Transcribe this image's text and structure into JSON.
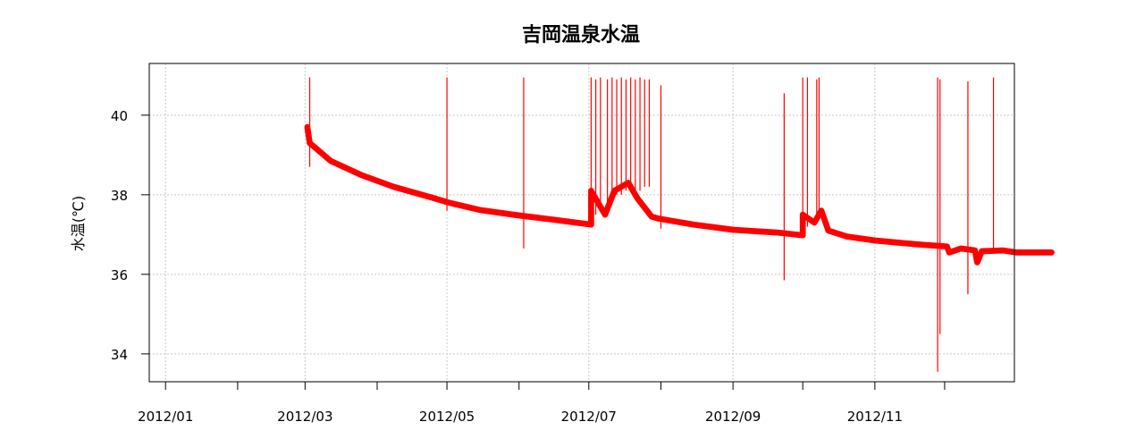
{
  "chart_data": {
    "type": "line",
    "title": "吉岡温泉水温",
    "xlabel": "",
    "ylabel": "水温(℃)",
    "x_axis": {
      "type": "date",
      "range": [
        "2011-12-25",
        "2012-12-31"
      ],
      "major_ticks": [
        "2012-01-01",
        "2012-02-01",
        "2012-03-01",
        "2012-04-01",
        "2012-05-01",
        "2012-06-01",
        "2012-07-01",
        "2012-08-01",
        "2012-09-01",
        "2012-10-01",
        "2012-11-01",
        "2012-12-01"
      ],
      "tick_labels": [
        {
          "date": "2012-01-01",
          "label": "2012/01"
        },
        {
          "date": "2012-03-01",
          "label": "2012/03"
        },
        {
          "date": "2012-05-01",
          "label": "2012/05"
        },
        {
          "date": "2012-07-01",
          "label": "2012/07"
        },
        {
          "date": "2012-09-01",
          "label": "2012/09"
        },
        {
          "date": "2012-11-01",
          "label": "2012/11"
        }
      ]
    },
    "y_axis": {
      "range": [
        33.3,
        41.3
      ],
      "ticks": [
        34,
        36,
        38,
        40
      ],
      "tick_labels": [
        "34",
        "36",
        "38",
        "40"
      ]
    },
    "grid": true,
    "series": [
      {
        "color": "#ff0000",
        "band_width": 0.15,
        "points": [
          [
            "2012-03-02",
            39.7
          ],
          [
            "2012-03-03",
            39.3
          ],
          [
            "2012-03-05",
            39.2
          ],
          [
            "2012-03-12",
            38.85
          ],
          [
            "2012-03-25",
            38.5
          ],
          [
            "2012-04-08",
            38.2
          ],
          [
            "2012-04-25",
            37.92
          ],
          [
            "2012-05-02",
            37.8
          ],
          [
            "2012-05-15",
            37.62
          ],
          [
            "2012-06-01",
            37.48
          ],
          [
            "2012-06-15",
            37.38
          ],
          [
            "2012-07-02",
            37.25
          ],
          [
            "2012-07-02",
            38.1
          ],
          [
            "2012-07-08",
            37.5
          ],
          [
            "2012-07-12",
            38.1
          ],
          [
            "2012-07-18",
            38.3
          ],
          [
            "2012-07-22",
            37.9
          ],
          [
            "2012-07-28",
            37.45
          ],
          [
            "2012-07-31",
            37.4
          ],
          [
            "2012-08-15",
            37.25
          ],
          [
            "2012-09-01",
            37.12
          ],
          [
            "2012-09-20",
            37.05
          ],
          [
            "2012-10-01",
            36.98
          ],
          [
            "2012-10-01",
            37.5
          ],
          [
            "2012-10-06",
            37.3
          ],
          [
            "2012-10-09",
            37.6
          ],
          [
            "2012-10-12",
            37.1
          ],
          [
            "2012-10-20",
            36.95
          ],
          [
            "2012-11-01",
            36.85
          ],
          [
            "2012-11-20",
            36.75
          ],
          [
            "2012-12-02",
            36.7
          ],
          [
            "2012-12-03",
            36.55
          ],
          [
            "2012-12-08",
            36.65
          ],
          [
            "2012-12-14",
            36.6
          ],
          [
            "2012-12-15",
            36.3
          ],
          [
            "2012-12-17",
            36.58
          ],
          [
            "2012-12-26",
            36.6
          ],
          [
            "2012-12-26",
            36.6
          ],
          [
            "2013-01-01",
            36.55
          ],
          [
            "2013-01-05",
            36.55
          ],
          [
            "2013-01-16",
            36.55
          ]
        ],
        "spikes": [
          {
            "date": "2012-03-03",
            "high": 40.95,
            "low": 38.7
          },
          {
            "date": "2012-05-01",
            "high": 40.95,
            "low": 37.6
          },
          {
            "date": "2012-06-03",
            "high": 40.95,
            "low": 36.65
          },
          {
            "date": "2012-07-02",
            "high": 40.95,
            "low": 37.3
          },
          {
            "date": "2012-07-04",
            "high": 40.9,
            "low": 37.5
          },
          {
            "date": "2012-07-06",
            "high": 40.95,
            "low": 37.6
          },
          {
            "date": "2012-07-09",
            "high": 40.9,
            "low": 37.8
          },
          {
            "date": "2012-07-11",
            "high": 40.95,
            "low": 37.9
          },
          {
            "date": "2012-07-13",
            "high": 40.9,
            "low": 38.0
          },
          {
            "date": "2012-07-15",
            "high": 40.95,
            "low": 38.0
          },
          {
            "date": "2012-07-17",
            "high": 40.9,
            "low": 38.1
          },
          {
            "date": "2012-07-19",
            "high": 40.95,
            "low": 38.1
          },
          {
            "date": "2012-07-21",
            "high": 40.9,
            "low": 38.0
          },
          {
            "date": "2012-07-23",
            "high": 40.95,
            "low": 38.1
          },
          {
            "date": "2012-07-25",
            "high": 40.9,
            "low": 38.2
          },
          {
            "date": "2012-07-27",
            "high": 40.9,
            "low": 38.2
          },
          {
            "date": "2012-08-01",
            "high": 40.75,
            "low": 37.15
          },
          {
            "date": "2012-09-23",
            "high": 40.55,
            "low": 35.85
          },
          {
            "date": "2012-10-01",
            "high": 40.95,
            "low": 37.1
          },
          {
            "date": "2012-10-03",
            "high": 40.95,
            "low": 37.2
          },
          {
            "date": "2012-10-07",
            "high": 40.9,
            "low": 37.3
          },
          {
            "date": "2012-10-08",
            "high": 40.95,
            "low": 37.4
          },
          {
            "date": "2012-11-28",
            "high": 40.95,
            "low": 33.55
          },
          {
            "date": "2012-11-29",
            "high": 40.9,
            "low": 34.5
          },
          {
            "date": "2012-12-11",
            "high": 40.85,
            "low": 35.5
          },
          {
            "date": "2012-12-22",
            "high": 40.95,
            "low": 36.55
          }
        ]
      }
    ]
  }
}
